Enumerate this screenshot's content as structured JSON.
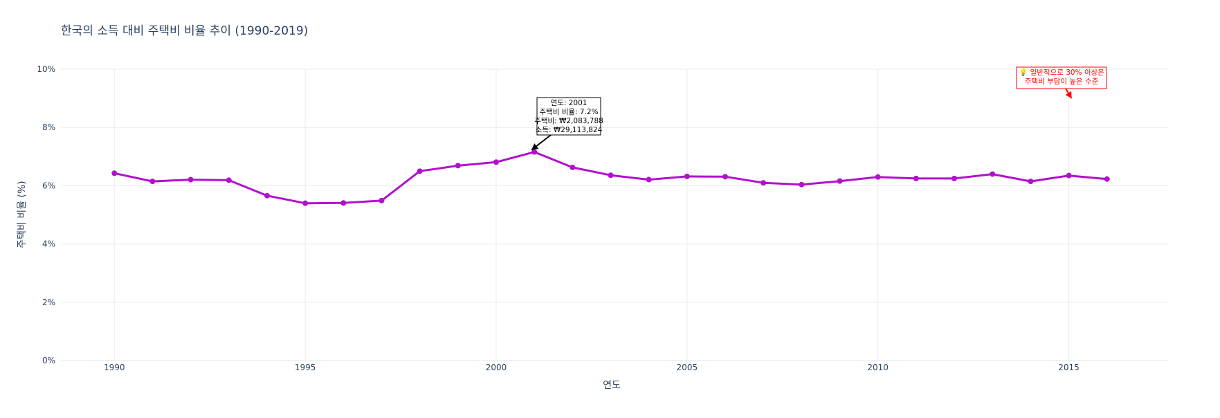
{
  "chart_data": {
    "type": "line",
    "title": "한국의 소득 대비 주택비 비율 추이 (1990-2019)",
    "xlabel": "연도",
    "ylabel": "주택비 비율 (%)",
    "xlim": [
      1988.6,
      2017.6
    ],
    "ylim": [
      0,
      10
    ],
    "grid": true,
    "legend": "none",
    "x_ticks": [
      1990,
      1995,
      2000,
      2005,
      2010,
      2015
    ],
    "y_ticks": [
      0,
      2,
      4,
      6,
      8,
      10
    ],
    "y_tick_labels": [
      "0%",
      "2%",
      "4%",
      "6%",
      "8%",
      "10%"
    ],
    "series_color": "#b30fcf",
    "x": [
      1990,
      1991,
      1992,
      1993,
      1994,
      1995,
      1996,
      1997,
      1998,
      1999,
      2000,
      2001,
      2002,
      2003,
      2004,
      2005,
      2006,
      2007,
      2008,
      2009,
      2010,
      2011,
      2012,
      2013,
      2014,
      2015,
      2016
    ],
    "values": [
      6.43,
      6.15,
      6.21,
      6.19,
      5.66,
      5.4,
      5.41,
      5.49,
      6.5,
      6.69,
      6.81,
      7.16,
      6.63,
      6.36,
      6.21,
      6.32,
      6.31,
      6.1,
      6.04,
      6.16,
      6.3,
      6.25,
      6.25,
      6.4,
      6.15,
      6.35,
      6.23
    ],
    "annotations": [
      {
        "name": "hover-annotation",
        "x": 2001,
        "y": 7.16,
        "lines": [
          "연도: 2001",
          "주택비 비율: 7.2%",
          "주택비: ₩2,083,788",
          "소득: ₩29,113,824"
        ],
        "color": "#000000"
      },
      {
        "name": "threshold-note",
        "x": 2015,
        "y": 9.0,
        "lines": [
          "💡 일반적으로 30% 이상은",
          "주택비 부담이 높은 수준"
        ],
        "color": "#ff0000"
      }
    ]
  }
}
